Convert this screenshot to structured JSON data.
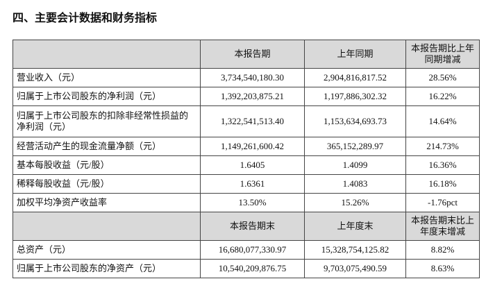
{
  "title": "四、主要会计数据和财务指标",
  "table": {
    "header": [
      "本报告期",
      "上年同期",
      "本报告期比上年同期增减"
    ],
    "rows": [
      [
        "营业收入（元）",
        "3,734,540,180.30",
        "2,904,816,817.52",
        "28.56%"
      ],
      [
        "归属于上市公司股东的净利润（元）",
        "1,392,203,875.21",
        "1,197,886,302.32",
        "16.22%"
      ],
      [
        "归属于上市公司股东的扣除非经常性损益的净利润（元）",
        "1,322,541,513.40",
        "1,153,634,693.73",
        "14.64%"
      ],
      [
        "经营活动产生的现金流量净额（元）",
        "1,149,261,600.42",
        "365,152,289.97",
        "214.73%"
      ],
      [
        "基本每股收益（元/股）",
        "1.6405",
        "1.4099",
        "16.36%"
      ],
      [
        "稀释每股收益（元/股）",
        "1.6361",
        "1.4083",
        "16.18%"
      ],
      [
        "加权平均净资产收益率",
        "13.50%",
        "15.26%",
        "-1.76pct"
      ]
    ],
    "header2": [
      "本报告期末",
      "上年度末",
      "本报告期末比上年度末增减"
    ],
    "rows2": [
      [
        "总资产（元）",
        "16,680,077,330.97",
        "15,328,754,125.82",
        "8.82%"
      ],
      [
        "归属于上市公司股东的净资产（元）",
        "10,540,209,876.75",
        "9,703,075,490.59",
        "8.63%"
      ]
    ]
  }
}
